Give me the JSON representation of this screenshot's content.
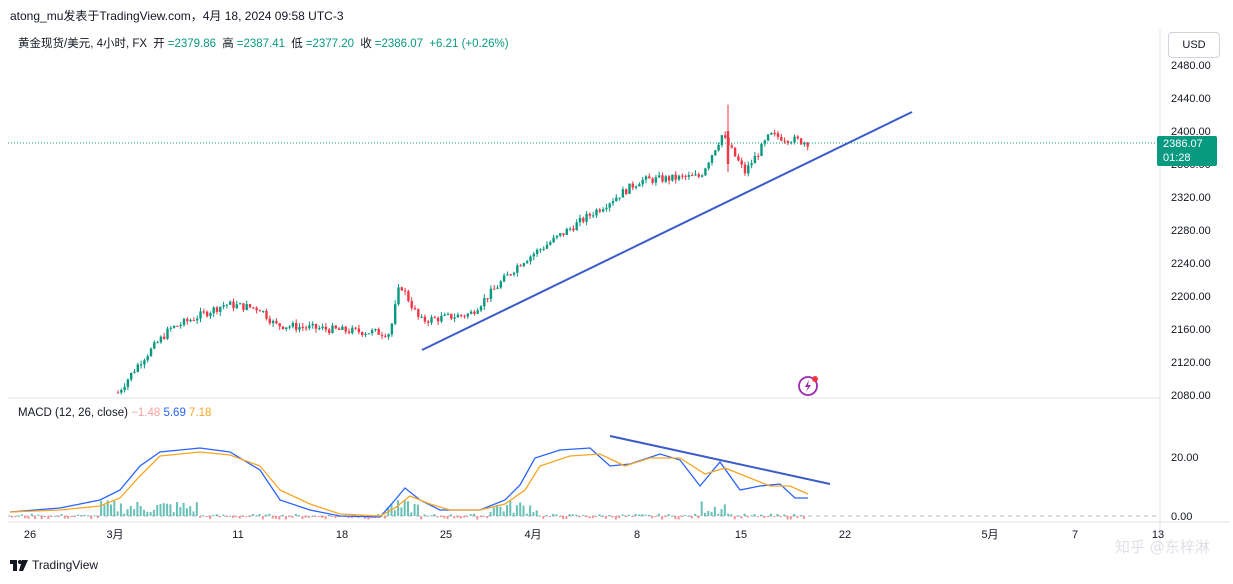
{
  "header": {
    "publisher_line": "atong_mu发表于TradingView.com，4月 18, 2024 09:58 UTC-3"
  },
  "legend": {
    "title": "黄金现货/美元, 4小时, FX",
    "open_label": "开",
    "open_value": "=2379.86",
    "high_label": "高",
    "high_value": "=2387.41",
    "low_label": "低",
    "low_value": "=2377.20",
    "close_label": "收",
    "close_value": "=2386.07",
    "change": "+6.21 (+0.26%)"
  },
  "currency_button": "USD",
  "price_axis": {
    "ticks": [
      "2480.00",
      "2440.00",
      "2400.00",
      "2360.00",
      "2320.00",
      "2280.00",
      "2240.00",
      "2200.00",
      "2160.00",
      "2120.00",
      "2080.00"
    ],
    "current_price": "2386.07",
    "countdown": "01:28"
  },
  "macd": {
    "label": "MACD (12, 26, close)",
    "hist_value": "−1.48",
    "macd_value": "5.69",
    "signal_value": "7.18",
    "ticks": [
      "20.00",
      "0.00"
    ]
  },
  "date_axis": {
    "labels": [
      "26",
      "3月",
      "11",
      "18",
      "25",
      "4月",
      "8",
      "15",
      "22",
      "5月",
      "7",
      "13"
    ]
  },
  "footer": {
    "brand": "TradingView",
    "watermark": "知乎 @东梓淋"
  },
  "colors": {
    "up": "#089981",
    "down": "#f23645",
    "trendline": "#3a5cc8",
    "macd_line": "#2962ff",
    "signal_line": "#f5a623"
  },
  "chart_data": {
    "type": "candlestick",
    "symbol": "黄金现货/美元",
    "timeframe": "4小时",
    "y_range": [
      2080,
      2480
    ],
    "macd_range": [
      0,
      20
    ],
    "price_path": [
      {
        "date": "3月",
        "price": 2083
      },
      {
        "date": "3月",
        "price": 2120
      },
      {
        "date": "3月",
        "price": 2160
      },
      {
        "date": "3月",
        "price": 2190
      },
      {
        "date": "11",
        "price": 2185
      },
      {
        "date": "11",
        "price": 2165
      },
      {
        "date": "18",
        "price": 2158
      },
      {
        "date": "18",
        "price": 2155
      },
      {
        "date": "18",
        "price": 2215
      },
      {
        "date": "25",
        "price": 2170
      },
      {
        "date": "25",
        "price": 2178
      },
      {
        "date": "4月",
        "price": 2240
      },
      {
        "date": "4月",
        "price": 2290
      },
      {
        "date": "8",
        "price": 2340
      },
      {
        "date": "8",
        "price": 2345
      },
      {
        "date": "15",
        "price": 2395
      },
      {
        "date": "15",
        "price": 2350
      },
      {
        "date": "15",
        "price": 2395
      },
      {
        "date": "15",
        "price": 2386
      }
    ]
  }
}
